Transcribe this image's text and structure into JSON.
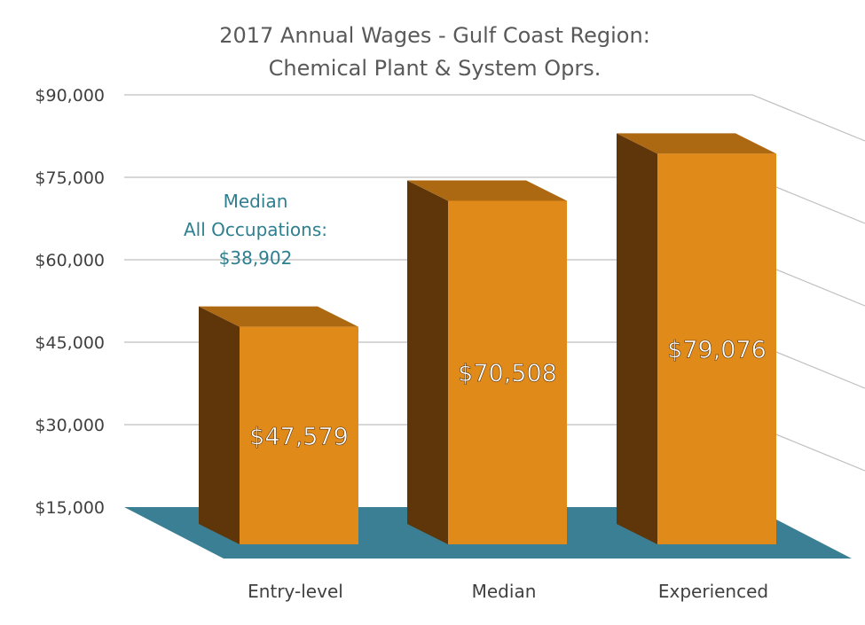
{
  "chart_data": {
    "type": "bar",
    "title": "2017 Annual Wages - Gulf Coast Region:",
    "subtitle": "Chemical Plant & System Oprs.",
    "xlabel": "",
    "ylabel": "",
    "ylim": [
      15000,
      90000
    ],
    "yticks": [
      15000,
      30000,
      45000,
      60000,
      75000,
      90000
    ],
    "ytick_labels": [
      "$15,000",
      "$30,000",
      "$45,000",
      "$60,000",
      "$75,000",
      "$90,000"
    ],
    "categories": [
      "Entry-level",
      "Median",
      "Experienced"
    ],
    "values": [
      47579,
      70508,
      79076
    ],
    "data_labels": [
      "$47,579",
      "$70,508",
      "$79,076"
    ],
    "grid": true,
    "annotation": {
      "lines": [
        "Median",
        "All Occupations:",
        "$38,902"
      ]
    }
  },
  "colors": {
    "bar_front": "#e08a1a",
    "bar_top": "#ad6812",
    "bar_side": "#5e360a",
    "floor": "#3a7f93",
    "annotation": "#2e7f8f",
    "grid": "#bfbfbf"
  }
}
